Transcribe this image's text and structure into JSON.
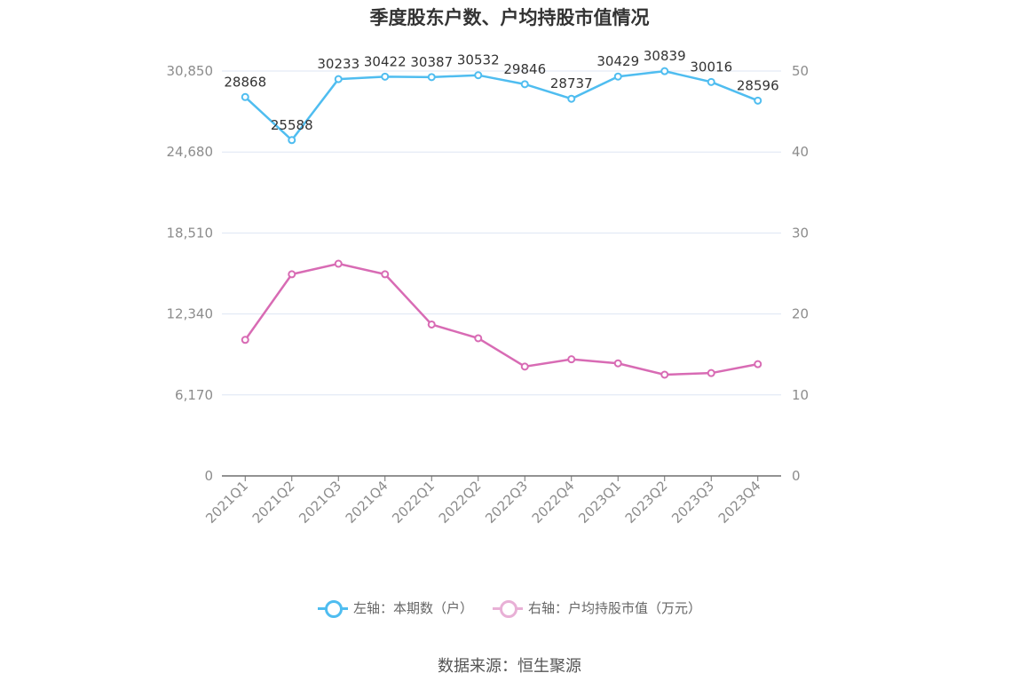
{
  "title": "季度股东户数、户均持股市值情况",
  "source": "数据来源：恒生聚源",
  "colors": {
    "series1": "#4fbdf0",
    "series2": "#d86bb4",
    "grid": "#dde6f3",
    "axis": "#8c8c8c"
  },
  "chart_data": {
    "type": "line",
    "categories": [
      "2021Q1",
      "2021Q2",
      "2021Q3",
      "2021Q4",
      "2022Q1",
      "2022Q2",
      "2022Q3",
      "2022Q4",
      "2023Q1",
      "2023Q2",
      "2023Q3",
      "2023Q4"
    ],
    "left_axis": {
      "ticks": [
        "0",
        "6,170",
        "12,340",
        "18,510",
        "24,680",
        "30,850"
      ],
      "ylim": [
        0,
        30850
      ]
    },
    "right_axis": {
      "ticks": [
        "0",
        "10",
        "20",
        "30",
        "40",
        "50"
      ],
      "ylim": [
        0,
        50
      ]
    },
    "series": [
      {
        "name": "左轴：本期数（户）",
        "axis": "left",
        "values": [
          28868,
          25588,
          30233,
          30422,
          30387,
          30532,
          29846,
          28737,
          30429,
          30839,
          30016,
          28596
        ],
        "labels": [
          "28868",
          "25588",
          "30233",
          "30422",
          "30387",
          "30532",
          "29846",
          "28737",
          "30429",
          "30839",
          "30016",
          "28596"
        ]
      },
      {
        "name": "右轴：户均持股市值（万元）",
        "axis": "right",
        "values": [
          16.8,
          24.9,
          26.2,
          24.9,
          18.7,
          17.0,
          13.5,
          14.4,
          13.9,
          12.5,
          12.7,
          13.8
        ]
      }
    ],
    "grid": true,
    "legend": "bottom"
  }
}
